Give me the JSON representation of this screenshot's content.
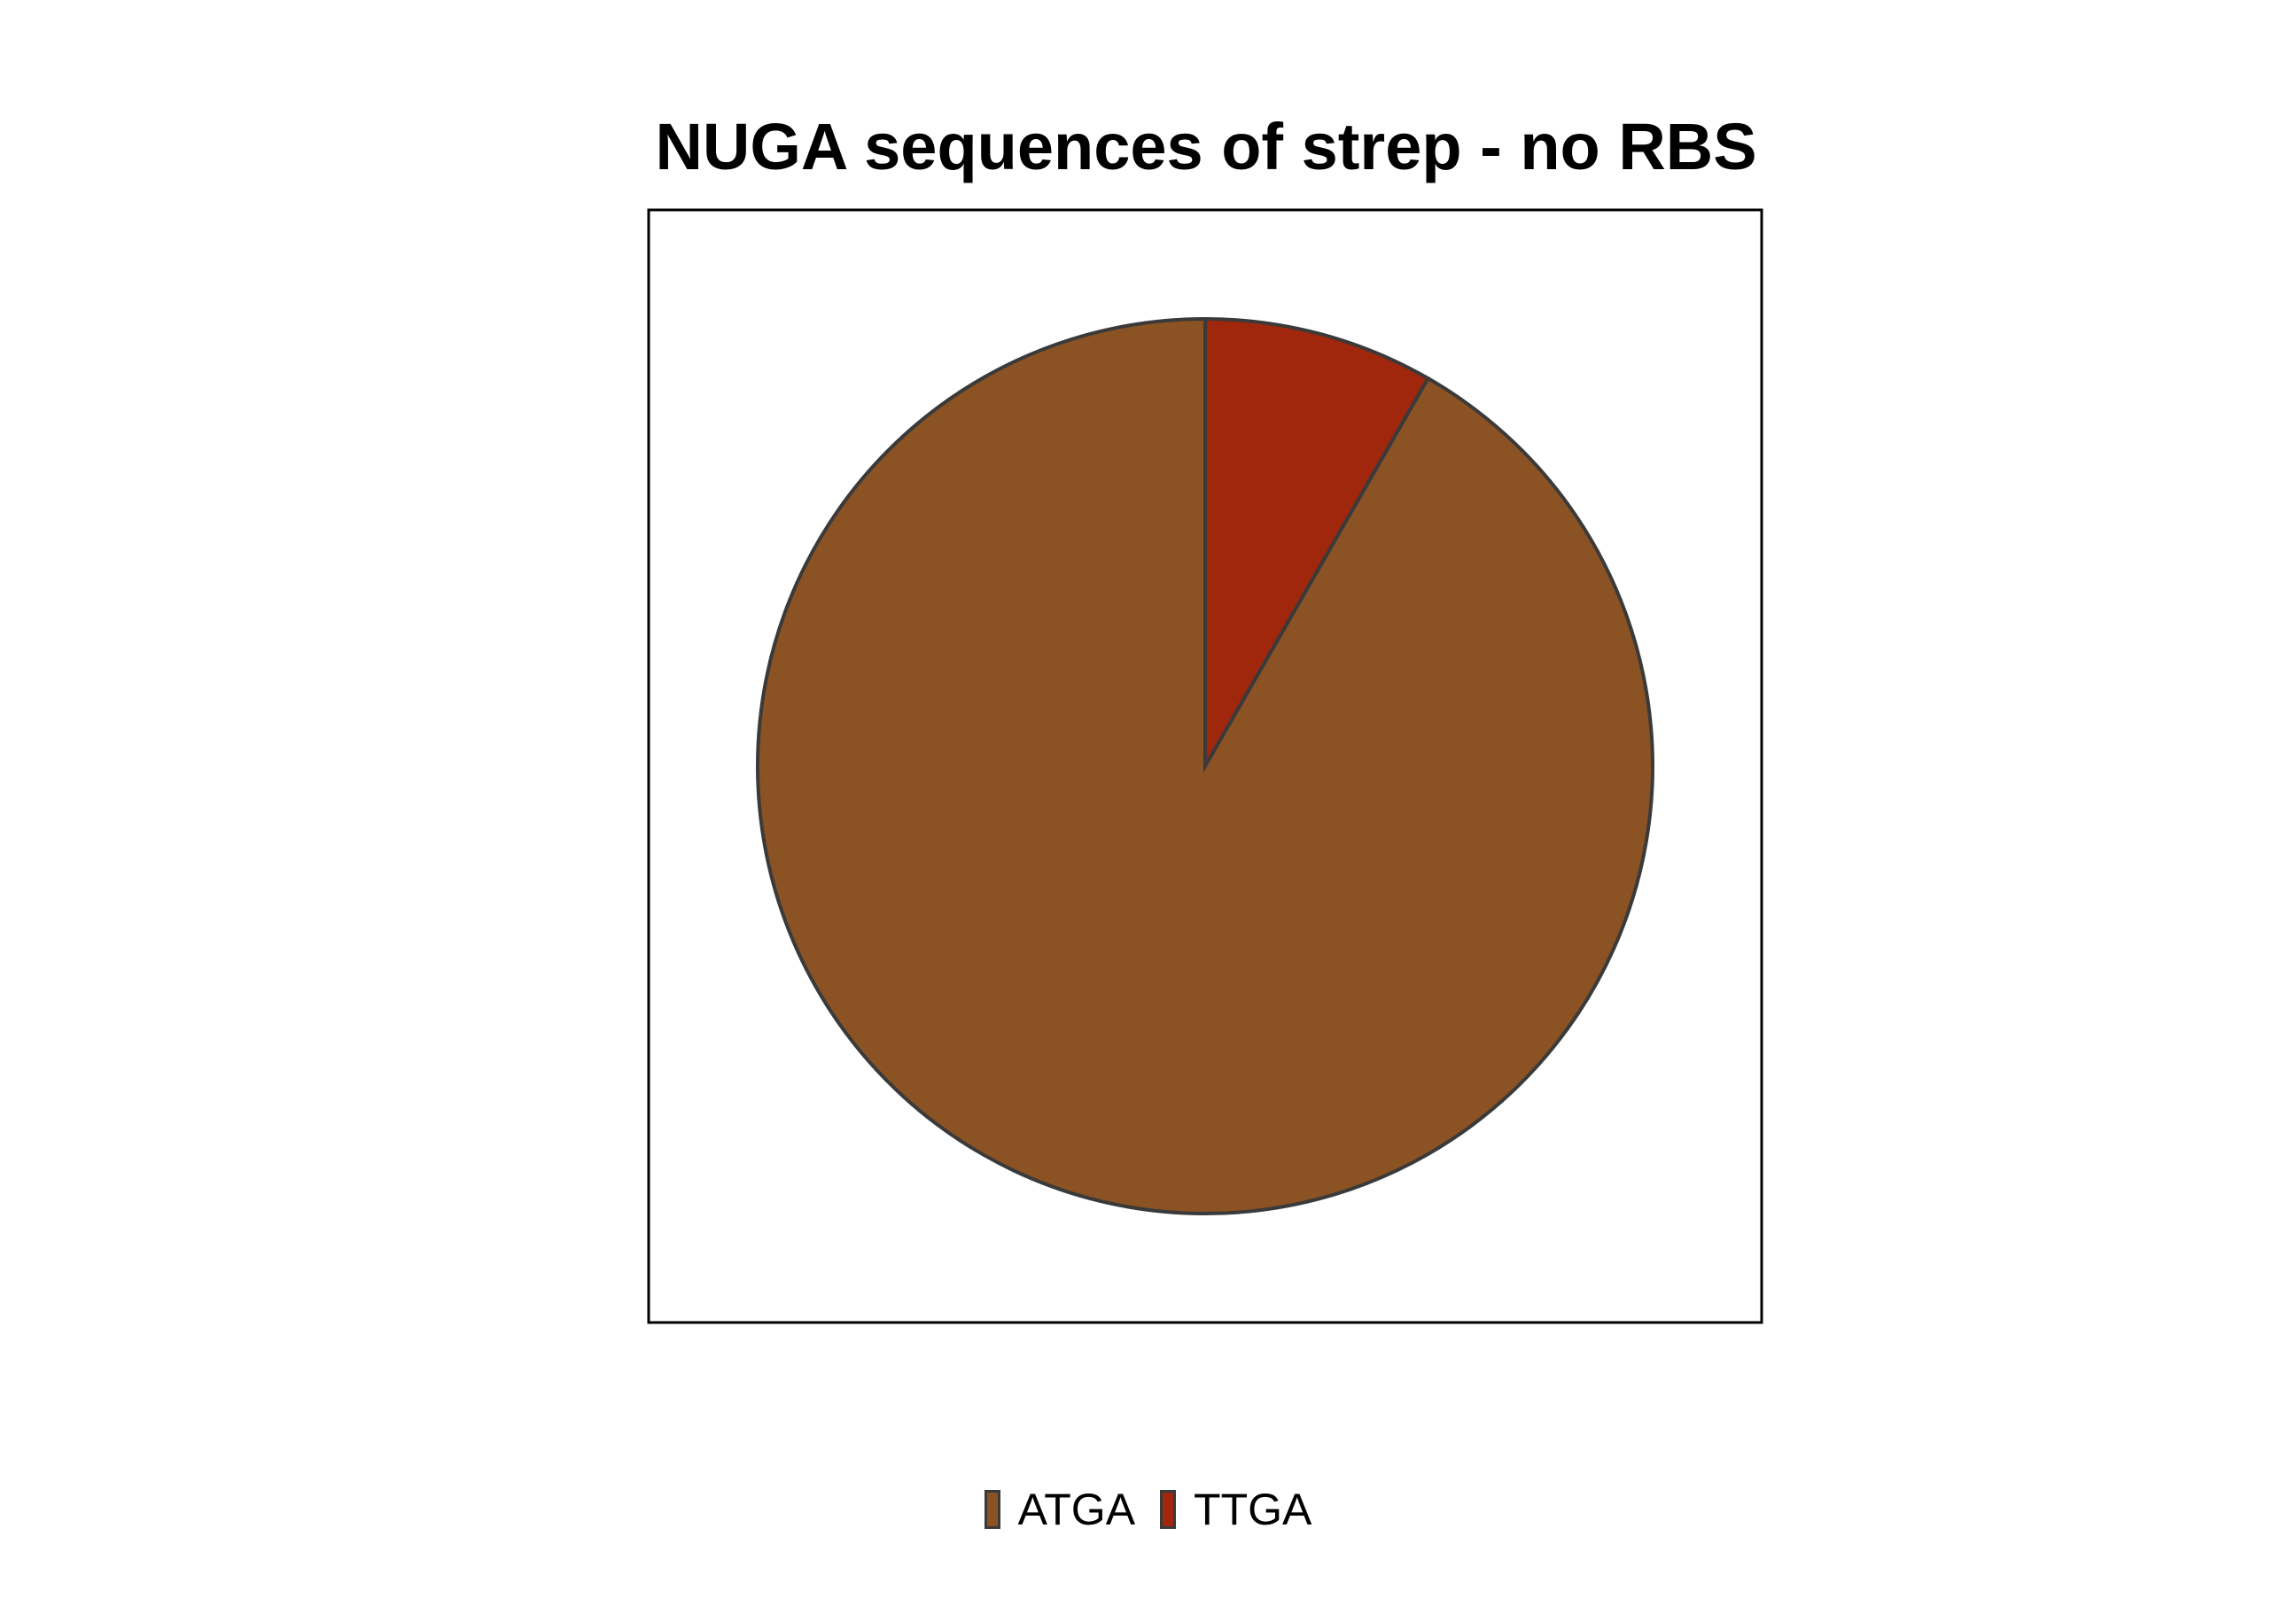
{
  "chart_data": {
    "type": "pie",
    "title": "NUGA sequences of strep - no RBS",
    "slices": [
      {
        "label": "ATGA",
        "value": 0.917,
        "color": "#8B5224"
      },
      {
        "label": "TTGA",
        "value": 0.083,
        "color": "#A0260C"
      }
    ],
    "start_angle_deg": 0,
    "direction": "clockwise",
    "legend_position": "bottom",
    "panel_border": true
  }
}
